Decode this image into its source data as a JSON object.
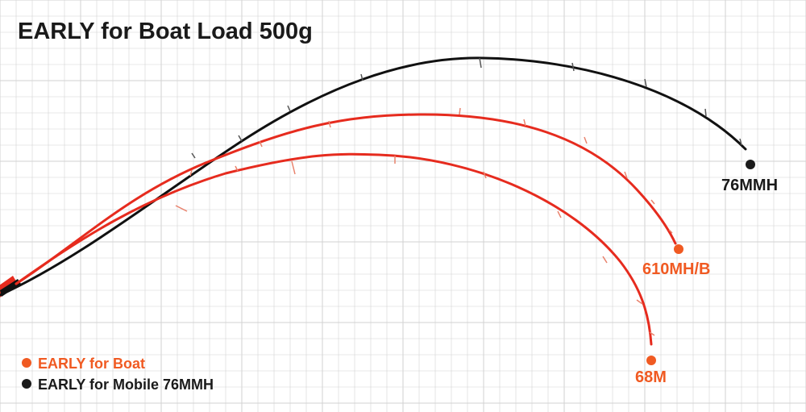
{
  "title": "EARLY for Boat  Load 500g",
  "colors": {
    "background": "#ffffff",
    "grid": "#d2d2d2",
    "orange": "#f05a22",
    "red": "#e62b1e",
    "black": "#111111",
    "title": "#1a1a1a"
  },
  "legend": [
    {
      "label": "EARLY for Boat",
      "color": "#f05a22"
    },
    {
      "label": "EARLY for Mobile 76MMH",
      "color": "#1a1a1a"
    }
  ],
  "chart_data": {
    "type": "line",
    "title": "EARLY for Boat  Load 500g",
    "grid": true,
    "legend_position": "bottom-left",
    "series": [
      {
        "name": "76MMH",
        "label_color": "#1a1a1a"
      },
      {
        "name": "610MH/B",
        "label_color": "#f05a22"
      },
      {
        "name": "68M",
        "label_color": "#f05a22"
      }
    ]
  }
}
